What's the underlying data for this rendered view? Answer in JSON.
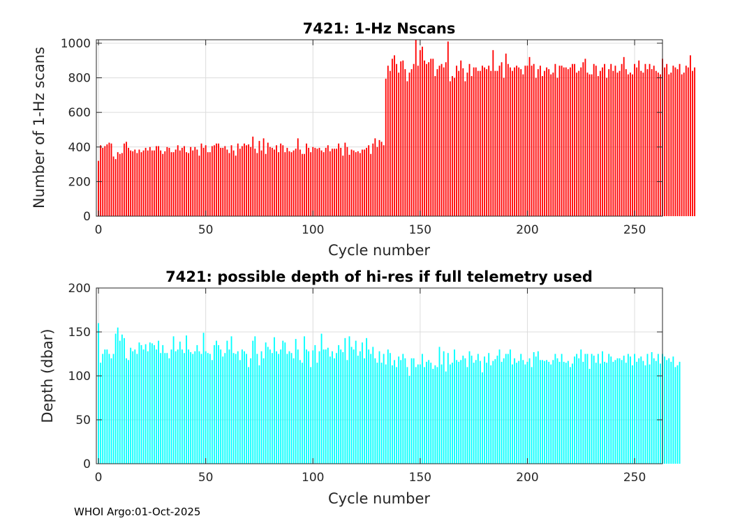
{
  "footer_text": "WHOI Argo:01-Oct-2025",
  "chart_data": [
    {
      "type": "bar",
      "title": "7421: 1-Hz Nscans",
      "xlabel": "Cycle number",
      "ylabel": "Number of 1-Hz scans",
      "xlim": [
        -1,
        263
      ],
      "ylim": [
        0,
        1020
      ],
      "xticks": [
        0,
        50,
        100,
        150,
        200,
        250
      ],
      "yticks": [
        0,
        200,
        400,
        600,
        800,
        1000
      ],
      "grid": true,
      "color": "#ff0000",
      "x_start": 0,
      "values": [
        320,
        410,
        395,
        405,
        415,
        425,
        420,
        345,
        330,
        370,
        360,
        365,
        420,
        430,
        395,
        380,
        375,
        385,
        365,
        385,
        370,
        380,
        395,
        380,
        400,
        380,
        380,
        405,
        405,
        380,
        360,
        375,
        400,
        395,
        370,
        370,
        385,
        410,
        380,
        395,
        405,
        370,
        365,
        400,
        380,
        400,
        385,
        350,
        420,
        395,
        410,
        370,
        370,
        405,
        410,
        420,
        420,
        395,
        395,
        405,
        385,
        365,
        410,
        380,
        350,
        420,
        390,
        405,
        420,
        410,
        415,
        400,
        460,
        390,
        365,
        435,
        380,
        450,
        360,
        425,
        400,
        395,
        385,
        410,
        370,
        420,
        410,
        370,
        395,
        375,
        370,
        380,
        390,
        450,
        385,
        360,
        360,
        420,
        395,
        370,
        400,
        395,
        390,
        395,
        380,
        370,
        395,
        410,
        375,
        390,
        390,
        390,
        420,
        395,
        350,
        425,
        400,
        355,
        385,
        380,
        370,
        375,
        365,
        385,
        385,
        395,
        410,
        360,
        420,
        450,
        400,
        440,
        430,
        410,
        795,
        870,
        840,
        910,
        930,
        880,
        830,
        895,
        900,
        850,
        780,
        830,
        850,
        880,
        1020,
        870,
        960,
        980,
        900,
        880,
        890,
        910,
        910,
        810,
        850,
        870,
        880,
        860,
        890,
        1010,
        780,
        810,
        800,
        870,
        840,
        900,
        855,
        780,
        830,
        880,
        810,
        860,
        860,
        840,
        840,
        870,
        860,
        850,
        870,
        840,
        960,
        840,
        840,
        870,
        890,
        800,
        940,
        880,
        860,
        840,
        860,
        870,
        860,
        850,
        820,
        870,
        870,
        920,
        870,
        880,
        800,
        850,
        870,
        810,
        840,
        860,
        850,
        820,
        830,
        880,
        800,
        870,
        870,
        860,
        860,
        850,
        860,
        880,
        880,
        830,
        840,
        860,
        890,
        910,
        830,
        820,
        820,
        880,
        870,
        810,
        840,
        860,
        880,
        800,
        850,
        880,
        840,
        870,
        830,
        840,
        880,
        920,
        850,
        820,
        830,
        820,
        880,
        860,
        900,
        840,
        830,
        880,
        850,
        880,
        850,
        870,
        840,
        830,
        820,
        910,
        860,
        880,
        820,
        830,
        870,
        860,
        850,
        880,
        820,
        830,
        870,
        860,
        930,
        840,
        860
      ],
      "note": "values approximate, read from chart"
    },
    {
      "type": "bar",
      "title": "7421: possible depth of hi-res if full telemetry used",
      "xlabel": "Cycle number",
      "ylabel": "Depth (dbar)",
      "xlim": [
        -1,
        263
      ],
      "ylim": [
        0,
        200
      ],
      "xticks": [
        0,
        50,
        100,
        150,
        200,
        250
      ],
      "yticks": [
        0,
        50,
        100,
        150,
        200
      ],
      "grid": true,
      "color": "#00ffff",
      "x_start": 0,
      "values": [
        160,
        115,
        125,
        130,
        130,
        125,
        120,
        125,
        148,
        155,
        140,
        147,
        143,
        120,
        118,
        132,
        128,
        130,
        125,
        138,
        135,
        130,
        136,
        128,
        138,
        137,
        135,
        130,
        140,
        126,
        135,
        126,
        126,
        120,
        130,
        145,
        128,
        130,
        139,
        130,
        126,
        146,
        130,
        127,
        125,
        128,
        135,
        128,
        125,
        149,
        128,
        126,
        125,
        118,
        135,
        140,
        135,
        130,
        122,
        126,
        140,
        130,
        145,
        126,
        125,
        128,
        118,
        130,
        128,
        125,
        110,
        120,
        140,
        145,
        125,
        112,
        128,
        120,
        138,
        133,
        130,
        126,
        144,
        128,
        125,
        130,
        140,
        138,
        125,
        128,
        126,
        120,
        142,
        130,
        118,
        115,
        145,
        130,
        128,
        110,
        129,
        135,
        115,
        128,
        148,
        130,
        130,
        132,
        122,
        128,
        120,
        126,
        135,
        130,
        127,
        143,
        118,
        145,
        133,
        130,
        140,
        123,
        128,
        138,
        120,
        143,
        130,
        125,
        133,
        120,
        115,
        128,
        115,
        125,
        113,
        130,
        126,
        112,
        118,
        110,
        122,
        118,
        125,
        120,
        110,
        100,
        120,
        120,
        110,
        113,
        113,
        125,
        110,
        116,
        118,
        115,
        108,
        112,
        110,
        133,
        113,
        128,
        105,
        126,
        113,
        115,
        130,
        118,
        116,
        118,
        123,
        120,
        110,
        128,
        123,
        115,
        118,
        125,
        117,
        104,
        122,
        115,
        126,
        112,
        117,
        119,
        123,
        130,
        116,
        120,
        125,
        125,
        130,
        113,
        120,
        115,
        117,
        125,
        118,
        113,
        116,
        120,
        110,
        127,
        122,
        128,
        118,
        118,
        117,
        118,
        116,
        113,
        118,
        125,
        120,
        116,
        125,
        116,
        115,
        117,
        110,
        114,
        122,
        125,
        120,
        130,
        116,
        125,
        125,
        108,
        125,
        123,
        115,
        125,
        114,
        128,
        116,
        115,
        125,
        122,
        116,
        118,
        120,
        120,
        118,
        123,
        115,
        125,
        122,
        112,
        125,
        116,
        120,
        122,
        117,
        112,
        125,
        113,
        127,
        120,
        117,
        125,
        114,
        125,
        122,
        118,
        120,
        116,
        122,
        110,
        112,
        116
      ]
    }
  ]
}
